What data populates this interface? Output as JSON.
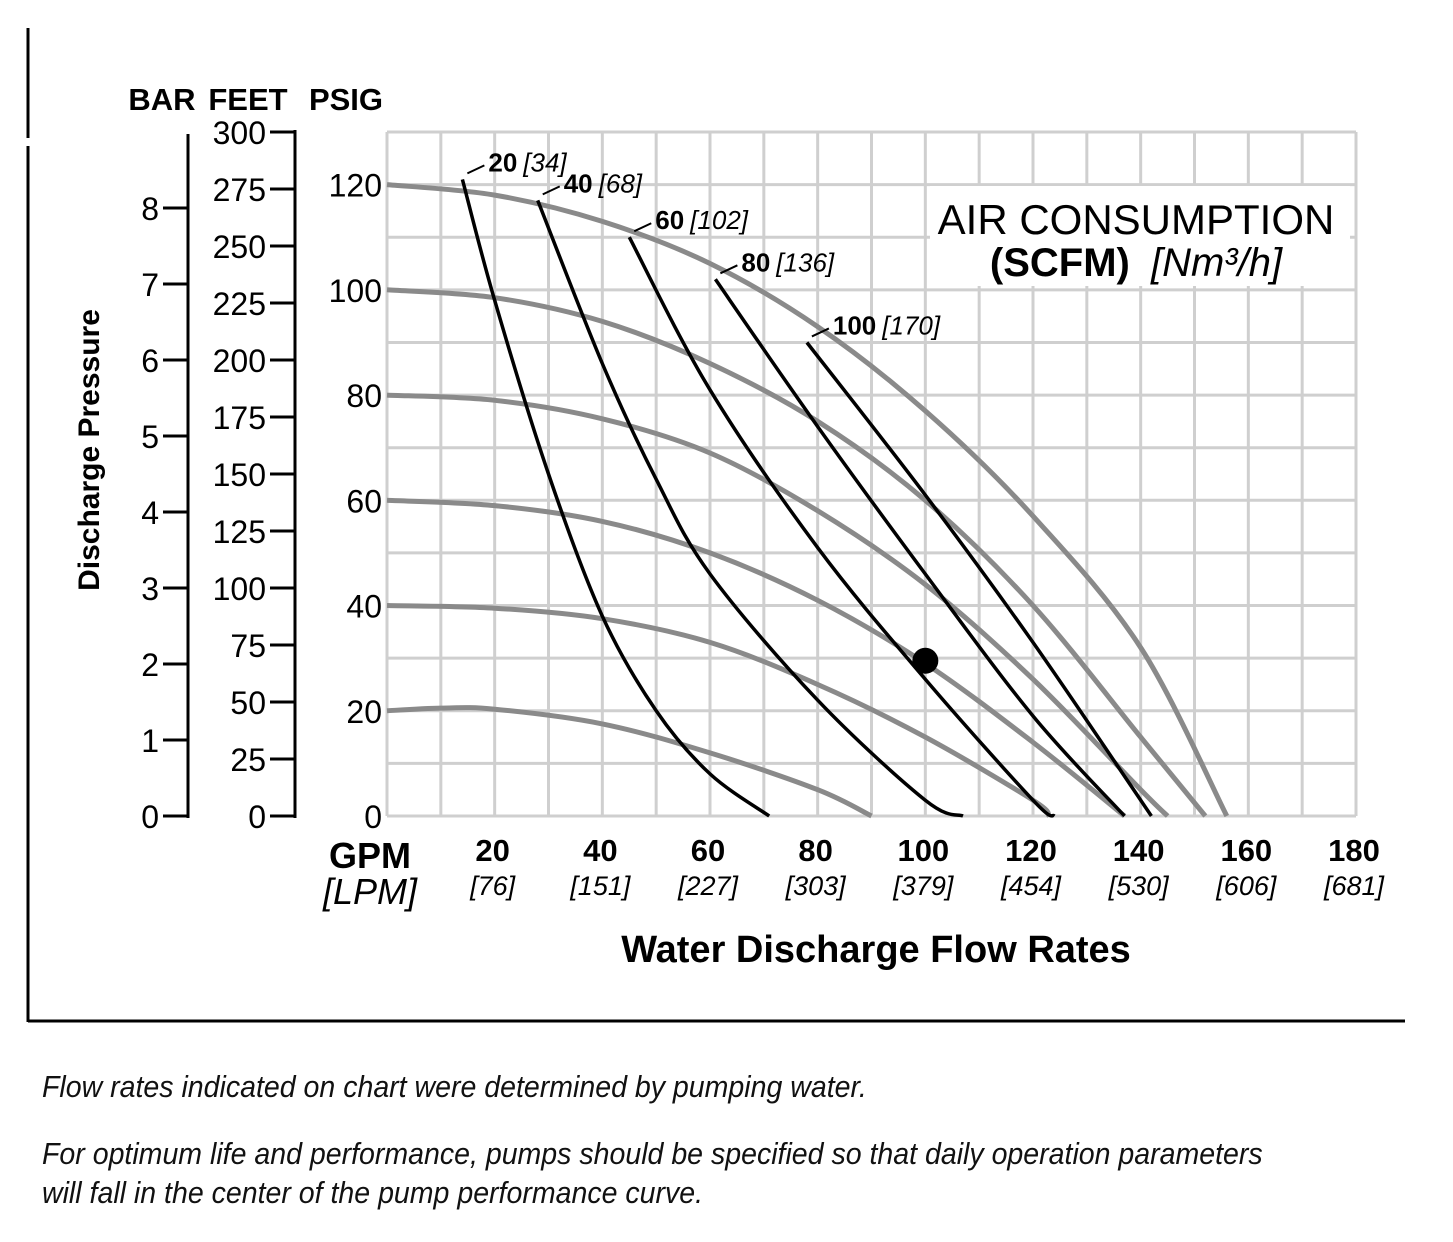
{
  "chart_data": {
    "type": "line",
    "title_line1": "AIR CONSUMPTION",
    "title_line2_bold": "(SCFM)",
    "title_line2_italic": "[Nm³/h]",
    "xlabel": "Water Discharge Flow Rates",
    "x_unit": "GPM",
    "x_unit_alt": "[LPM]",
    "ylabel": "Discharge Pressure",
    "y_units": {
      "bar": "BAR",
      "feet": "FEET",
      "psig": "PSIG"
    },
    "xlim": [
      0,
      180
    ],
    "ylim_psig": [
      0,
      130
    ],
    "ylim_feet": [
      0,
      300
    ],
    "ylim_bar": [
      0,
      9
    ],
    "x_ticks": [
      {
        "gpm": "20",
        "lpm": "[76]",
        "v": 20
      },
      {
        "gpm": "40",
        "lpm": "[151]",
        "v": 40
      },
      {
        "gpm": "60",
        "lpm": "[227]",
        "v": 60
      },
      {
        "gpm": "80",
        "lpm": "[303]",
        "v": 80
      },
      {
        "gpm": "100",
        "lpm": "[379]",
        "v": 100
      },
      {
        "gpm": "120",
        "lpm": "[454]",
        "v": 120
      },
      {
        "gpm": "140",
        "lpm": "[530]",
        "v": 140
      },
      {
        "gpm": "160",
        "lpm": "[606]",
        "v": 160
      },
      {
        "gpm": "180",
        "lpm": "[681]",
        "v": 180
      }
    ],
    "psig_ticks": [
      "0",
      "20",
      "40",
      "60",
      "80",
      "100",
      "120"
    ],
    "feet_ticks": [
      "0",
      "25",
      "50",
      "75",
      "100",
      "125",
      "150",
      "175",
      "200",
      "225",
      "250",
      "275",
      "300"
    ],
    "bar_ticks": [
      "0",
      "1",
      "2",
      "3",
      "4",
      "5",
      "6",
      "7",
      "8"
    ],
    "grid": true,
    "pressure_curves": [
      {
        "name": "120 psig curve",
        "points": [
          [
            0,
            120
          ],
          [
            20,
            118
          ],
          [
            40,
            113
          ],
          [
            60,
            105
          ],
          [
            80,
            93
          ],
          [
            100,
            77
          ],
          [
            120,
            57
          ],
          [
            140,
            32
          ],
          [
            156,
            0
          ]
        ]
      },
      {
        "name": "100 psig curve",
        "points": [
          [
            0,
            100
          ],
          [
            20,
            98.5
          ],
          [
            40,
            94
          ],
          [
            60,
            86
          ],
          [
            80,
            75
          ],
          [
            100,
            60
          ],
          [
            120,
            40
          ],
          [
            140,
            15
          ],
          [
            152,
            0
          ]
        ]
      },
      {
        "name": "80 psig curve",
        "points": [
          [
            0,
            80
          ],
          [
            20,
            79
          ],
          [
            40,
            75.5
          ],
          [
            60,
            69
          ],
          [
            80,
            58
          ],
          [
            100,
            44
          ],
          [
            120,
            26
          ],
          [
            140,
            5
          ],
          [
            145,
            0
          ]
        ]
      },
      {
        "name": "60 psig curve",
        "points": [
          [
            0,
            60
          ],
          [
            20,
            59
          ],
          [
            40,
            56
          ],
          [
            60,
            50
          ],
          [
            80,
            41
          ],
          [
            100,
            29
          ],
          [
            120,
            14
          ],
          [
            137,
            0
          ]
        ]
      },
      {
        "name": "40 psig curve",
        "points": [
          [
            0,
            40
          ],
          [
            20,
            39.5
          ],
          [
            40,
            37.5
          ],
          [
            60,
            33
          ],
          [
            80,
            25
          ],
          [
            100,
            15
          ],
          [
            120,
            3
          ],
          [
            123,
            0
          ]
        ]
      },
      {
        "name": "20 psig curve",
        "points": [
          [
            0,
            20
          ],
          [
            10,
            20.5
          ],
          [
            20,
            20.3
          ],
          [
            40,
            17.5
          ],
          [
            60,
            12
          ],
          [
            80,
            5
          ],
          [
            90,
            0
          ]
        ]
      }
    ],
    "air_curves": [
      {
        "scfm": "20",
        "nm3h": "[34]",
        "points": [
          [
            14,
            121
          ],
          [
            20,
            98
          ],
          [
            30,
            65
          ],
          [
            40,
            38
          ],
          [
            50,
            20
          ],
          [
            60,
            8
          ],
          [
            71,
            0
          ]
        ]
      },
      {
        "scfm": "40",
        "nm3h": "[68]",
        "points": [
          [
            28,
            117
          ],
          [
            40,
            86
          ],
          [
            50,
            64
          ],
          [
            60,
            46
          ],
          [
            80,
            22
          ],
          [
            100,
            3
          ],
          [
            107,
            0
          ]
        ]
      },
      {
        "scfm": "60",
        "nm3h": "[102]",
        "points": [
          [
            45,
            110
          ],
          [
            60,
            81
          ],
          [
            80,
            51
          ],
          [
            100,
            26
          ],
          [
            120,
            3
          ],
          [
            124,
            0
          ]
        ]
      },
      {
        "scfm": "80",
        "nm3h": "[136]",
        "points": [
          [
            61,
            102
          ],
          [
            80,
            74
          ],
          [
            100,
            46
          ],
          [
            120,
            19
          ],
          [
            137,
            0
          ]
        ]
      },
      {
        "scfm": "100",
        "nm3h": "[170]",
        "points": [
          [
            78,
            90
          ],
          [
            100,
            61
          ],
          [
            120,
            33
          ],
          [
            142,
            0
          ]
        ]
      }
    ],
    "marked_point": {
      "x": 100,
      "y": 29.5
    }
  },
  "notes": {
    "line1": "Flow rates indicated on chart were determined by pumping water.",
    "line2a": "For optimum life and performance, pumps should be specified so that daily operation parameters",
    "line2b": "will fall in the center of the pump performance curve."
  }
}
